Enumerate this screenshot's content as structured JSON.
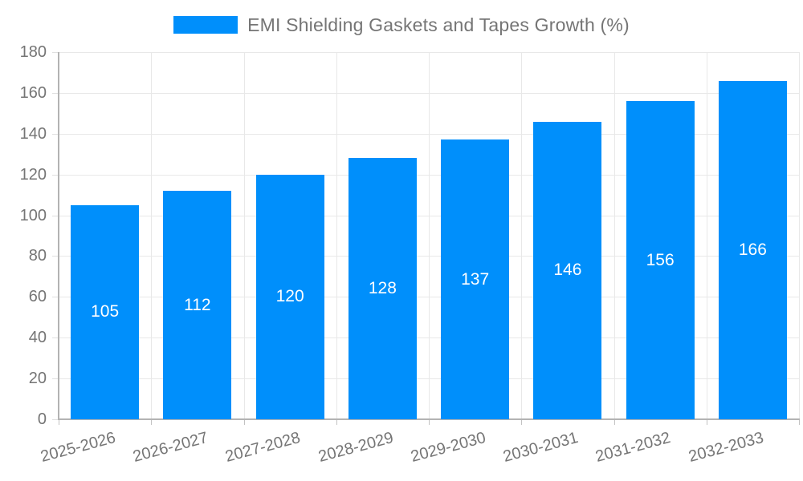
{
  "legend": {
    "label": "EMI Shielding Gaskets and Tapes Growth (%)",
    "swatch_color": "#008ffb"
  },
  "chart_data": {
    "type": "bar",
    "title": "",
    "xlabel": "",
    "ylabel": "",
    "categories": [
      "2025-2026",
      "2026-2027",
      "2027-2028",
      "2028-2029",
      "2029-2030",
      "2030-2031",
      "2031-2032",
      "2032-2033"
    ],
    "values": [
      105,
      112,
      120,
      128,
      137,
      146,
      156,
      166
    ],
    "series_name": "EMI Shielding Gaskets and Tapes Growth (%)",
    "data_labels": [
      "105",
      "112",
      "120",
      "128",
      "137",
      "146",
      "156",
      "166"
    ],
    "ylim": [
      0,
      180
    ],
    "yticks": [
      0,
      20,
      40,
      60,
      80,
      100,
      120,
      140,
      160,
      180
    ],
    "grid": true,
    "legend_position": "top",
    "bar_color": "#008ffb",
    "data_label_color": "#ffffff",
    "axis_text_color": "#757575"
  }
}
